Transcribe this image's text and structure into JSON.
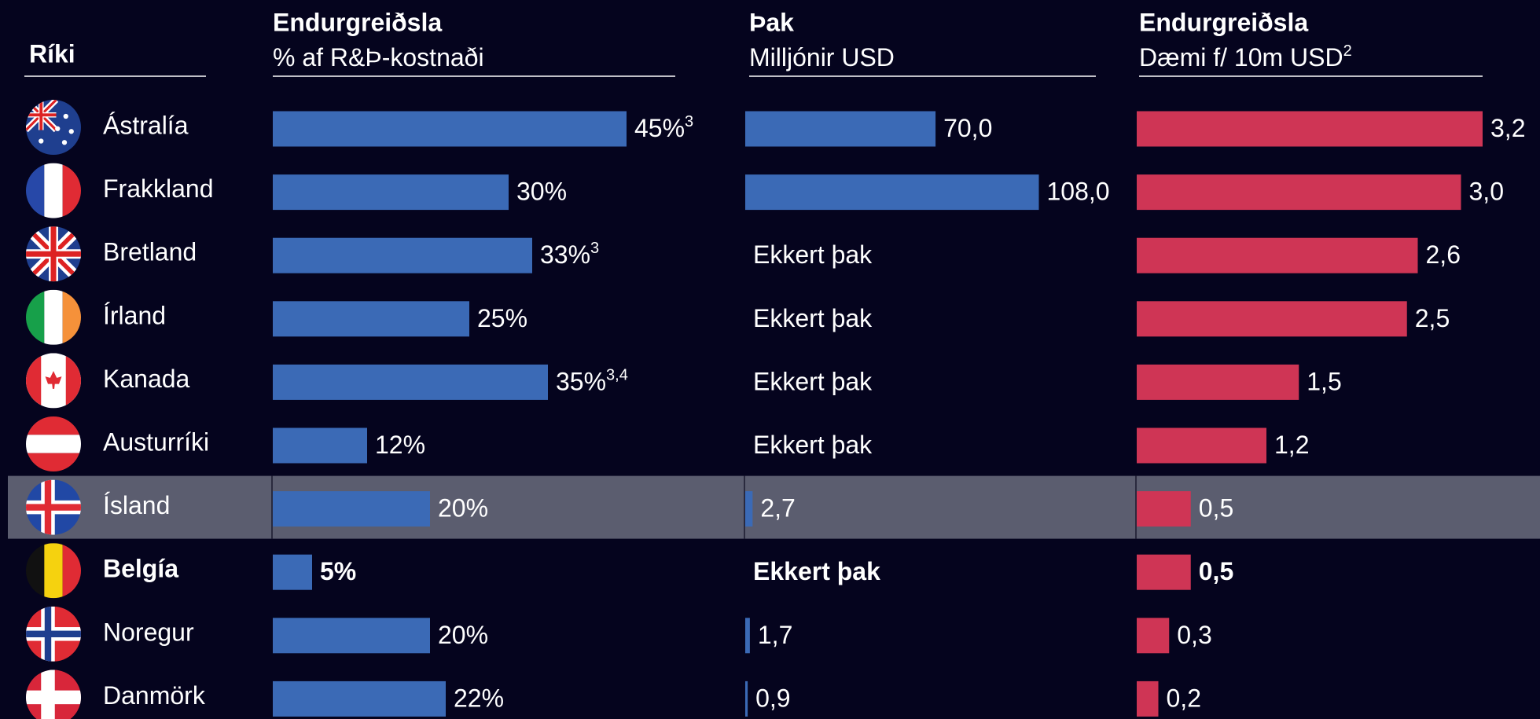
{
  "header": "Ríki",
  "countries": [
    "Ástralía",
    "Frakkland",
    "Bretland",
    "Írland",
    "Kanada",
    "Austurríki",
    "Ísland",
    "Belgía",
    "Noregur",
    "Danmörk"
  ],
  "highlight": "Ísland",
  "bold": "Belgía",
  "chart_data": [
    {
      "type": "bar",
      "orientation": "horizontal",
      "title": "Endurgreiðsla",
      "subtitle": "% af R&Þ-kostnaði",
      "color": "#3b6ab6",
      "xlim": [
        0,
        50
      ],
      "values": [
        45,
        30,
        33,
        25,
        35,
        12,
        20,
        5,
        20,
        22
      ],
      "value_labels": [
        "45%",
        "30%",
        "33%",
        "25%",
        "35%",
        "12%",
        "20%",
        "5%",
        "20%",
        "22%"
      ],
      "value_notes": [
        "3",
        null,
        "3",
        null,
        "3,4",
        null,
        null,
        null,
        null,
        null
      ]
    },
    {
      "type": "bar",
      "orientation": "horizontal",
      "title": "Þak",
      "subtitle": "Milljónir USD",
      "color": "#3b6ab6",
      "xlim": [
        0,
        120
      ],
      "values": [
        70.0,
        108.0,
        null,
        null,
        null,
        null,
        2.7,
        null,
        1.7,
        0.9
      ],
      "value_labels": [
        "70,0",
        "108,0",
        "Ekkert þak",
        "Ekkert þak",
        "Ekkert þak",
        "Ekkert þak",
        "2,7",
        "Ekkert þak",
        "1,7",
        "0,9"
      ]
    },
    {
      "type": "bar",
      "orientation": "horizontal",
      "title": "Endurgreiðsla",
      "subtitle": "Dæmi f/ 10m USD",
      "subtitle_note": "2",
      "color": "#cf3555",
      "xlim": [
        0,
        3.2
      ],
      "values": [
        3.2,
        3.0,
        2.6,
        2.5,
        1.5,
        1.2,
        0.5,
        0.5,
        0.3,
        0.2
      ],
      "value_labels": [
        "3,2",
        "3,0",
        "2,6",
        "2,5",
        "1,5",
        "1,2",
        "0,5",
        "0,5",
        "0,3",
        "0,2"
      ]
    }
  ]
}
